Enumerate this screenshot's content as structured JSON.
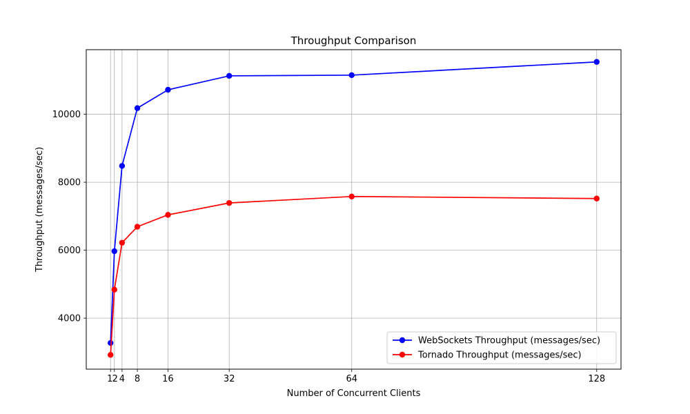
{
  "chart_data": {
    "type": "line",
    "title": "Throughput Comparison",
    "xlabel": "Number of Concurrent Clients",
    "ylabel": "Throughput (messages/sec)",
    "x": [
      1,
      2,
      4,
      8,
      16,
      32,
      64,
      128
    ],
    "xticks": [
      1,
      2,
      4,
      8,
      16,
      32,
      64,
      128
    ],
    "yticks": [
      4000,
      6000,
      8000,
      10000
    ],
    "xlim": [
      -5.35,
      134.35
    ],
    "ylim": [
      2500,
      11900
    ],
    "grid": true,
    "legend_position": "lower-right",
    "series": [
      {
        "name": "WebSockets Throughput (messages/sec)",
        "color": "#0000ff",
        "values": [
          3270,
          5970,
          8480,
          10180,
          10720,
          11130,
          11150,
          11540
        ]
      },
      {
        "name": "Tornado Throughput (messages/sec)",
        "color": "#ff0000",
        "values": [
          2920,
          4840,
          6220,
          6690,
          7040,
          7390,
          7580,
          7520
        ]
      }
    ]
  }
}
